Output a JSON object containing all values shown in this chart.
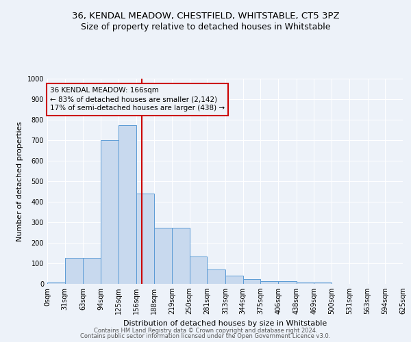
{
  "title1": "36, KENDAL MEADOW, CHESTFIELD, WHITSTABLE, CT5 3PZ",
  "title2": "Size of property relative to detached houses in Whitstable",
  "xlabel": "Distribution of detached houses by size in Whitstable",
  "ylabel": "Number of detached properties",
  "bar_left_edges": [
    0,
    31,
    63,
    94,
    125,
    156,
    188,
    219,
    250,
    281,
    313,
    344,
    375,
    406,
    438,
    469,
    500,
    531,
    563,
    594
  ],
  "bar_widths": [
    31,
    32,
    31,
    31,
    31,
    32,
    31,
    31,
    31,
    32,
    31,
    31,
    31,
    32,
    31,
    31,
    31,
    32,
    31,
    31
  ],
  "bar_heights": [
    8,
    128,
    128,
    700,
    775,
    440,
    275,
    275,
    135,
    70,
    40,
    25,
    15,
    12,
    8,
    8,
    0,
    0,
    0,
    0
  ],
  "bar_color": "#c8d9ee",
  "bar_edge_color": "#5b9bd5",
  "vline_x": 166,
  "vline_color": "#cc0000",
  "annotation_text": "36 KENDAL MEADOW: 166sqm\n← 83% of detached houses are smaller (2,142)\n17% of semi-detached houses are larger (438) →",
  "annotation_box_edgecolor": "#cc0000",
  "annotation_box_facecolor": "#eef2f8",
  "ylim": [
    0,
    1000
  ],
  "yticks": [
    0,
    100,
    200,
    300,
    400,
    500,
    600,
    700,
    800,
    900,
    1000
  ],
  "xtick_labels": [
    "0sqm",
    "31sqm",
    "63sqm",
    "94sqm",
    "125sqm",
    "156sqm",
    "188sqm",
    "219sqm",
    "250sqm",
    "281sqm",
    "313sqm",
    "344sqm",
    "375sqm",
    "406sqm",
    "438sqm",
    "469sqm",
    "500sqm",
    "531sqm",
    "563sqm",
    "594sqm",
    "625sqm"
  ],
  "xtick_positions": [
    0,
    31,
    63,
    94,
    125,
    156,
    188,
    219,
    250,
    281,
    313,
    344,
    375,
    406,
    438,
    469,
    500,
    531,
    563,
    594,
    625
  ],
  "background_color": "#edf2f9",
  "grid_color": "#ffffff",
  "footer1": "Contains HM Land Registry data © Crown copyright and database right 2024.",
  "footer2": "Contains public sector information licensed under the Open Government Licence v3.0.",
  "title1_fontsize": 9.5,
  "title2_fontsize": 9,
  "axis_label_fontsize": 8,
  "tick_fontsize": 7,
  "footer_fontsize": 6,
  "annot_fontsize": 7.5
}
